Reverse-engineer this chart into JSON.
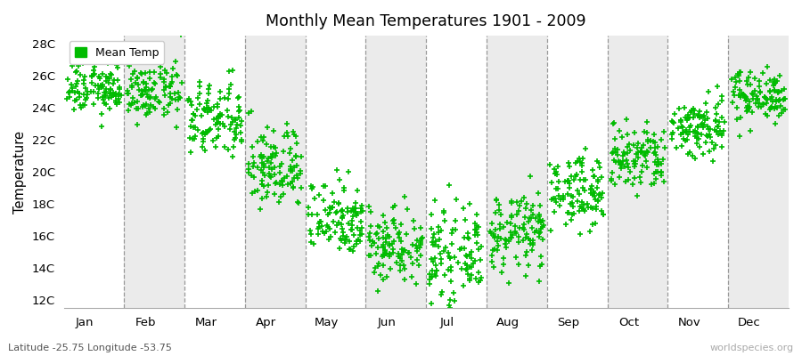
{
  "title": "Monthly Mean Temperatures 1901 - 2009",
  "ylabel": "Temperature",
  "xlabel_bottom": "Latitude -25.75 Longitude -53.75",
  "watermark": "worldspecies.org",
  "marker_color": "#00bb00",
  "marker_size": 5,
  "ylim": [
    11.5,
    28.5
  ],
  "yticks": [
    12,
    14,
    16,
    18,
    20,
    22,
    24,
    26,
    28
  ],
  "ytick_labels": [
    "12C",
    "14C",
    "16C",
    "18C",
    "20C",
    "22C",
    "24C",
    "26C",
    "28C"
  ],
  "months": [
    "Jan",
    "Feb",
    "Mar",
    "Apr",
    "May",
    "Jun",
    "Jul",
    "Aug",
    "Sep",
    "Oct",
    "Nov",
    "Dec"
  ],
  "monthly_means": [
    25.2,
    25.0,
    23.2,
    20.3,
    17.2,
    15.5,
    14.8,
    16.2,
    18.8,
    20.8,
    22.8,
    24.8
  ],
  "monthly_stds": [
    0.8,
    0.9,
    1.2,
    1.3,
    1.2,
    1.2,
    1.3,
    1.2,
    1.1,
    1.1,
    1.0,
    0.8
  ],
  "n_years": 109,
  "background_colors": [
    "#ffffff",
    "#ebebeb"
  ],
  "legend_label": "Mean Temp",
  "seed": 12345
}
